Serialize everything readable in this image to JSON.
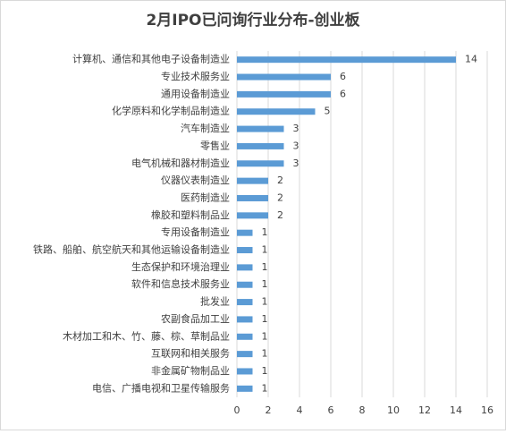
{
  "chart_data": {
    "type": "bar",
    "orientation": "horizontal",
    "title": "2月IPO已问询行业分布-创业板",
    "categories": [
      "计算机、通信和其他电子设备制造业",
      "专业技术服务业",
      "通用设备制造业",
      "化学原料和化学制品制造业",
      "汽车制造业",
      "零售业",
      "电气机械和器材制造业",
      "仪器仪表制造业",
      "医药制造业",
      "橡胶和塑料制品业",
      "专用设备制造业",
      "铁路、船舶、航空航天和其他运输设备制造业",
      "生态保护和环境治理业",
      "软件和信息技术服务业",
      "批发业",
      "农副食品加工业",
      "木材加工和木、竹、藤、棕、草制品业",
      "互联网和相关服务",
      "非金属矿物制品业",
      "电信、广播电视和卫星传输服务"
    ],
    "values": [
      14,
      6,
      6,
      5,
      3,
      3,
      3,
      2,
      2,
      2,
      1,
      1,
      1,
      1,
      1,
      1,
      1,
      1,
      1,
      1
    ],
    "color": "#5b9bd5",
    "xlim": [
      0,
      16
    ],
    "xticks": [
      0,
      2,
      4,
      6,
      8,
      10,
      12,
      14,
      16
    ],
    "grid": true
  }
}
